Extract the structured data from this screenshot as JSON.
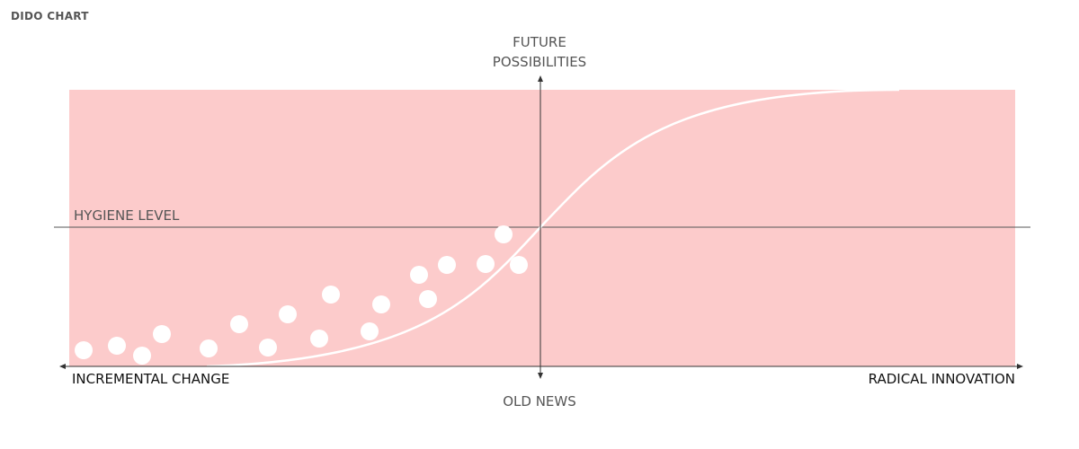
{
  "title": "DIDO CHART",
  "labels": {
    "top_line1": "FUTURE",
    "top_line2": "POSSIBILITIES",
    "bottom": "OLD NEWS",
    "left": "INCREMENTAL CHANGE",
    "right": "RADICAL INNOVATION",
    "hygiene": "HYGIENE LEVEL"
  },
  "colors": {
    "background_band": "#fccbcb",
    "curve": "#ffffff",
    "dots": "#ffffff",
    "axis": "#333333",
    "hygiene_line": "#555555",
    "label_dark": "#111111",
    "label_muted": "#555555"
  },
  "icons": {
    "axis_ends": "arrowhead-icon",
    "dots": "circle-icon"
  }
}
